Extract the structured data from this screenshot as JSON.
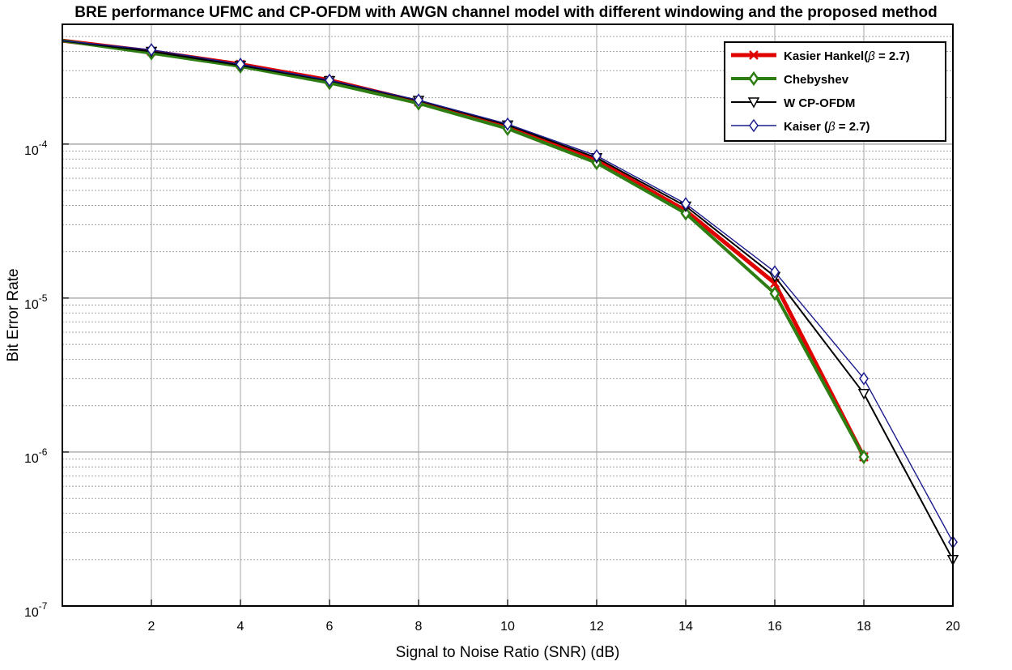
{
  "chart_data": {
    "type": "line",
    "title": "BRE performance UFMC and CP-OFDM with AWGN channel model with different windowing and the proposed method",
    "xlabel": "Signal to Noise Ratio (SNR) (dB)",
    "ylabel": "Bit Error Rate",
    "xlim": [
      0,
      20
    ],
    "ylim": [
      1e-07,
      0.0006
    ],
    "yscale": "log",
    "grid": true,
    "legend_position": "top-right",
    "x_ticks": [
      2,
      4,
      6,
      8,
      10,
      12,
      14,
      16,
      18,
      20
    ],
    "x_tick_labels": [
      "2",
      "4",
      "6",
      "8",
      "10",
      "12",
      "14",
      "16",
      "18",
      "20"
    ],
    "y_ticks": [
      {
        "value": 0.0001,
        "base": "10",
        "exp": "-4"
      },
      {
        "value": 1e-05,
        "base": "10",
        "exp": "-5"
      },
      {
        "value": 1e-06,
        "base": "10",
        "exp": "-6"
      },
      {
        "value": 1e-07,
        "base": "10",
        "exp": "-7"
      }
    ],
    "series": [
      {
        "name": "Kasier Hankel(",
        "beta": "β",
        "suffix": " = 2.7)",
        "color": "#e00000",
        "marker": "x",
        "x": [
          0,
          2,
          4,
          6,
          8,
          10,
          12,
          14,
          16,
          18
        ],
        "values": [
          0.00047,
          0.0004,
          0.00033,
          0.00026,
          0.000188,
          0.000131,
          7.85e-05,
          3.7e-05,
          1.25e-05,
          9.3e-07
        ]
      },
      {
        "name": "Chebyshev",
        "color": "#2e7d12",
        "marker": "diamond",
        "x": [
          0,
          2,
          4,
          6,
          8,
          10,
          12,
          14,
          16,
          18
        ],
        "values": [
          0.00047,
          0.00039,
          0.00032,
          0.00025,
          0.000184,
          0.000126,
          7.55e-05,
          3.55e-05,
          1.07e-05,
          9.3e-07
        ]
      },
      {
        "name": "W CP-OFDM",
        "color": "#000000",
        "marker": "triangle-down",
        "x": [
          0,
          2,
          4,
          6,
          8,
          10,
          12,
          14,
          16,
          18,
          20
        ],
        "values": [
          0.00047,
          0.0004,
          0.000325,
          0.000258,
          0.000192,
          0.000133,
          8.15e-05,
          3.95e-05,
          1.38e-05,
          2.4e-06,
          2e-07
        ]
      },
      {
        "name": "Kaiser (",
        "beta": "β",
        "suffix": " = 2.7)",
        "color": "#1c1c8c",
        "marker": "diamond",
        "x": [
          0,
          2,
          4,
          6,
          8,
          10,
          12,
          14,
          16,
          18,
          20
        ],
        "values": [
          0.00047,
          0.00041,
          0.00033,
          0.00026,
          0.000193,
          0.000135,
          8.4e-05,
          4.1e-05,
          1.48e-05,
          3e-06,
          2.6e-07
        ]
      }
    ]
  }
}
